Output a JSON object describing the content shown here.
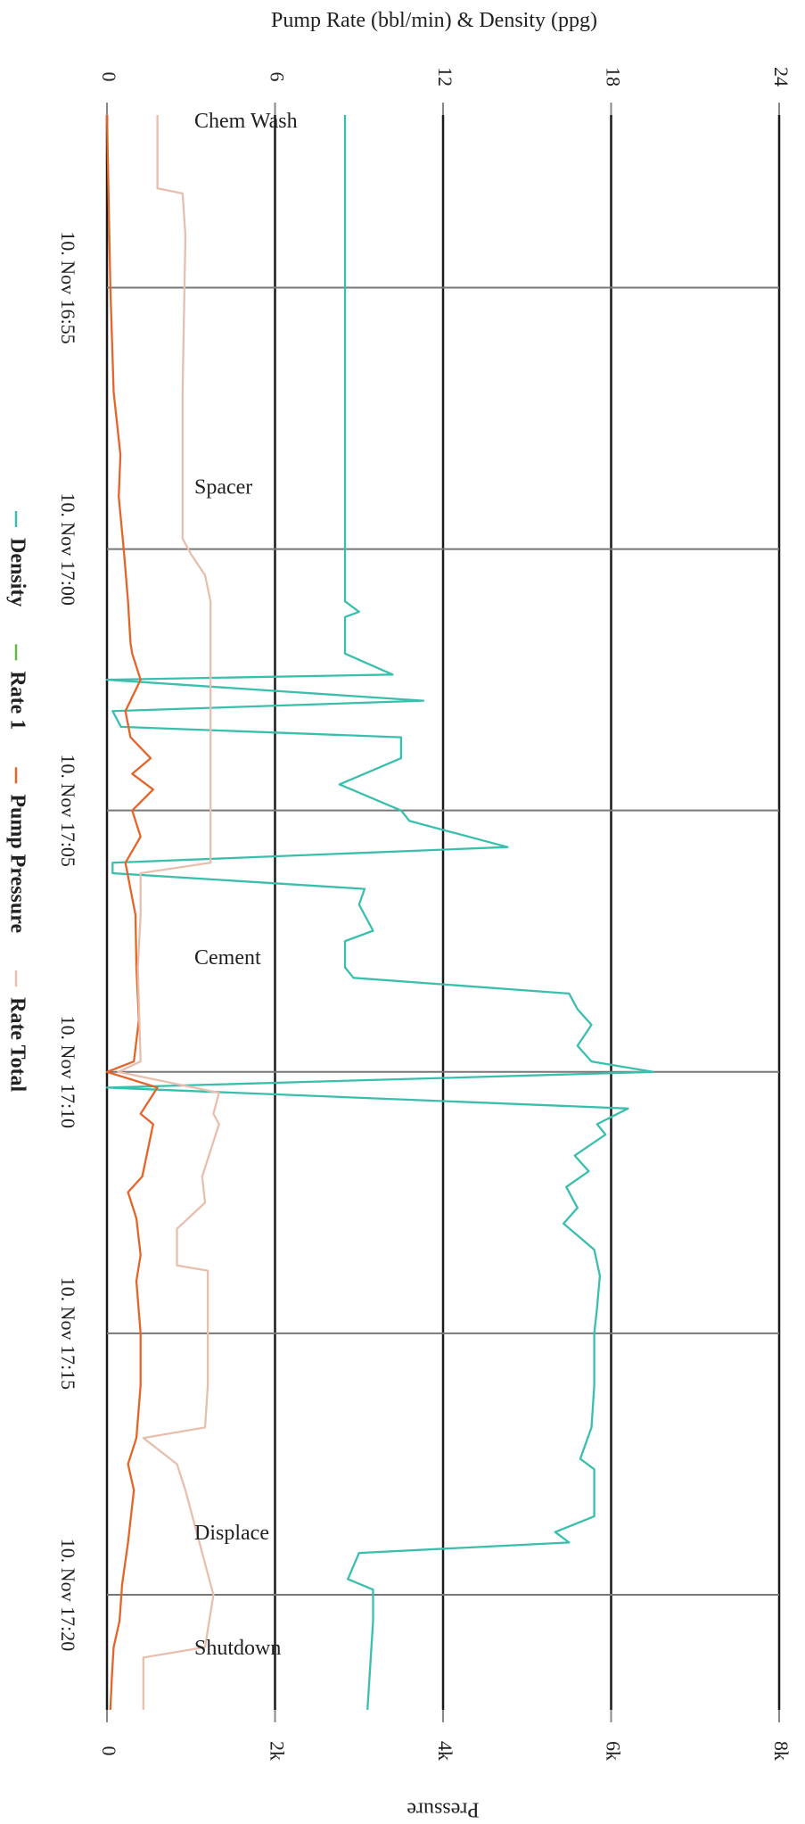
{
  "chart_data": {
    "type": "line",
    "rotated": "90deg-clockwise",
    "left_axis": {
      "title": "Pump Rate (bbl/min) & Density (ppg)",
      "ticks": [
        "0",
        "6",
        "12",
        "18",
        "24"
      ],
      "values": [
        0,
        6,
        12,
        18,
        24
      ],
      "range": [
        0,
        24
      ]
    },
    "right_axis": {
      "title": "Pressure",
      "ticks": [
        "0",
        "2k",
        "4k",
        "6k",
        "8k"
      ],
      "values": [
        0,
        2000,
        4000,
        6000,
        8000
      ],
      "range": [
        0,
        8000
      ]
    },
    "time_axis": {
      "ticks": [
        "10. Nov 16:55",
        "10. Nov 17:00",
        "10. Nov 17:05",
        "10. Nov 17:10",
        "10. Nov 17:15",
        "10. Nov 17:20"
      ],
      "tick_minutes": [
        0,
        5,
        10,
        15,
        20,
        25
      ],
      "range_minutes": [
        -3.3,
        27.2
      ]
    },
    "grid": true,
    "legend_position": "bottom",
    "phases": [
      {
        "label": "Chem Wash",
        "t": -3.3
      },
      {
        "label": "Spacer",
        "t": 3.7
      },
      {
        "label": "Cement",
        "t": 12.7
      },
      {
        "label": "Displace",
        "t": 23.7
      },
      {
        "label": "Shutdown",
        "t": 25.9
      }
    ],
    "series": [
      {
        "name": "Density",
        "color": "#3bbfad",
        "axis": "left",
        "points": [
          [
            -3.3,
            8.5
          ],
          [
            6.0,
            8.5
          ],
          [
            6.2,
            9.0
          ],
          [
            6.3,
            8.5
          ],
          [
            7.0,
            8.5
          ],
          [
            7.4,
            10.2
          ],
          [
            7.5,
            0.0
          ],
          [
            7.9,
            11.3
          ],
          [
            8.1,
            0.2
          ],
          [
            8.4,
            0.5
          ],
          [
            8.6,
            10.5
          ],
          [
            9.0,
            10.5
          ],
          [
            9.5,
            8.3
          ],
          [
            10.0,
            10.5
          ],
          [
            10.2,
            10.8
          ],
          [
            10.7,
            14.3
          ],
          [
            11.0,
            0.2
          ],
          [
            11.2,
            0.2
          ],
          [
            11.5,
            9.2
          ],
          [
            11.8,
            9.0
          ],
          [
            12.3,
            9.5
          ],
          [
            12.5,
            8.5
          ],
          [
            13.0,
            8.5
          ],
          [
            13.2,
            8.8
          ],
          [
            13.5,
            16.5
          ],
          [
            13.8,
            16.8
          ],
          [
            14.1,
            17.3
          ],
          [
            14.5,
            16.8
          ],
          [
            14.8,
            17.3
          ],
          [
            15.0,
            19.5
          ],
          [
            15.3,
            0.0
          ],
          [
            15.7,
            18.6
          ],
          [
            16.0,
            17.5
          ],
          [
            16.2,
            17.8
          ],
          [
            16.6,
            16.7
          ],
          [
            16.9,
            17.2
          ],
          [
            17.2,
            16.4
          ],
          [
            17.6,
            16.8
          ],
          [
            17.9,
            16.3
          ],
          [
            18.4,
            17.4
          ],
          [
            18.9,
            17.6
          ],
          [
            19.5,
            17.5
          ],
          [
            20.0,
            17.4
          ],
          [
            21.0,
            17.4
          ],
          [
            21.8,
            17.3
          ],
          [
            22.4,
            16.9
          ],
          [
            22.6,
            17.4
          ],
          [
            23.5,
            17.4
          ],
          [
            23.8,
            16.0
          ],
          [
            24.0,
            16.5
          ],
          [
            24.2,
            9.0
          ],
          [
            24.7,
            8.6
          ],
          [
            24.9,
            9.5
          ],
          [
            25.5,
            9.5
          ],
          [
            27.2,
            9.3
          ]
        ]
      },
      {
        "name": "Rate 1",
        "color": "#6ab54a",
        "axis": "left",
        "points": []
      },
      {
        "name": "Pump Pressure",
        "color": "#e4642a",
        "axis": "right",
        "points": [
          [
            -3.3,
            0
          ],
          [
            0.0,
            40
          ],
          [
            2.0,
            80
          ],
          [
            3.2,
            160
          ],
          [
            4.0,
            140
          ],
          [
            5.0,
            200
          ],
          [
            6.0,
            250
          ],
          [
            6.8,
            280
          ],
          [
            7.0,
            300
          ],
          [
            7.5,
            400
          ],
          [
            8.1,
            220
          ],
          [
            8.6,
            280
          ],
          [
            9.0,
            520
          ],
          [
            9.3,
            300
          ],
          [
            9.6,
            550
          ],
          [
            10.0,
            300
          ],
          [
            10.5,
            400
          ],
          [
            11.0,
            220
          ],
          [
            12.0,
            340
          ],
          [
            13.0,
            350
          ],
          [
            14.0,
            380
          ],
          [
            14.8,
            320
          ],
          [
            15.0,
            0
          ],
          [
            15.3,
            600
          ],
          [
            15.8,
            400
          ],
          [
            16.0,
            550
          ],
          [
            17.0,
            420
          ],
          [
            17.3,
            250
          ],
          [
            17.8,
            350
          ],
          [
            18.5,
            400
          ],
          [
            19.0,
            350
          ],
          [
            20.0,
            400
          ],
          [
            21.0,
            400
          ],
          [
            22.0,
            350
          ],
          [
            22.5,
            250
          ],
          [
            23.0,
            320
          ],
          [
            24.0,
            250
          ],
          [
            24.8,
            180
          ],
          [
            25.5,
            150
          ],
          [
            26.0,
            80
          ],
          [
            26.5,
            60
          ],
          [
            27.2,
            40
          ]
        ]
      },
      {
        "name": "Rate Total",
        "color": "#e7bfae",
        "axis": "left",
        "points": [
          [
            -3.3,
            1.8
          ],
          [
            -1.9,
            1.8
          ],
          [
            -1.8,
            2.7
          ],
          [
            -1.0,
            2.8
          ],
          [
            2.0,
            2.7
          ],
          [
            4.8,
            2.7
          ],
          [
            5.1,
            3.0
          ],
          [
            5.5,
            3.5
          ],
          [
            6.0,
            3.7
          ],
          [
            8.0,
            3.7
          ],
          [
            11.0,
            3.7
          ],
          [
            11.2,
            1.2
          ],
          [
            12.0,
            1.2
          ],
          [
            13.0,
            1.1
          ],
          [
            14.8,
            1.2
          ],
          [
            15.0,
            0.4
          ],
          [
            15.4,
            4.0
          ],
          [
            15.8,
            3.8
          ],
          [
            16.0,
            4.0
          ],
          [
            17.0,
            3.4
          ],
          [
            17.5,
            3.5
          ],
          [
            18.0,
            2.5
          ],
          [
            18.7,
            2.5
          ],
          [
            18.8,
            3.6
          ],
          [
            21.0,
            3.6
          ],
          [
            21.8,
            3.5
          ],
          [
            22.0,
            1.3
          ],
          [
            22.5,
            2.5
          ],
          [
            23.0,
            2.8
          ],
          [
            25.0,
            3.8
          ],
          [
            26.0,
            3.5
          ],
          [
            26.2,
            1.3
          ],
          [
            27.2,
            1.3
          ]
        ]
      }
    ]
  }
}
